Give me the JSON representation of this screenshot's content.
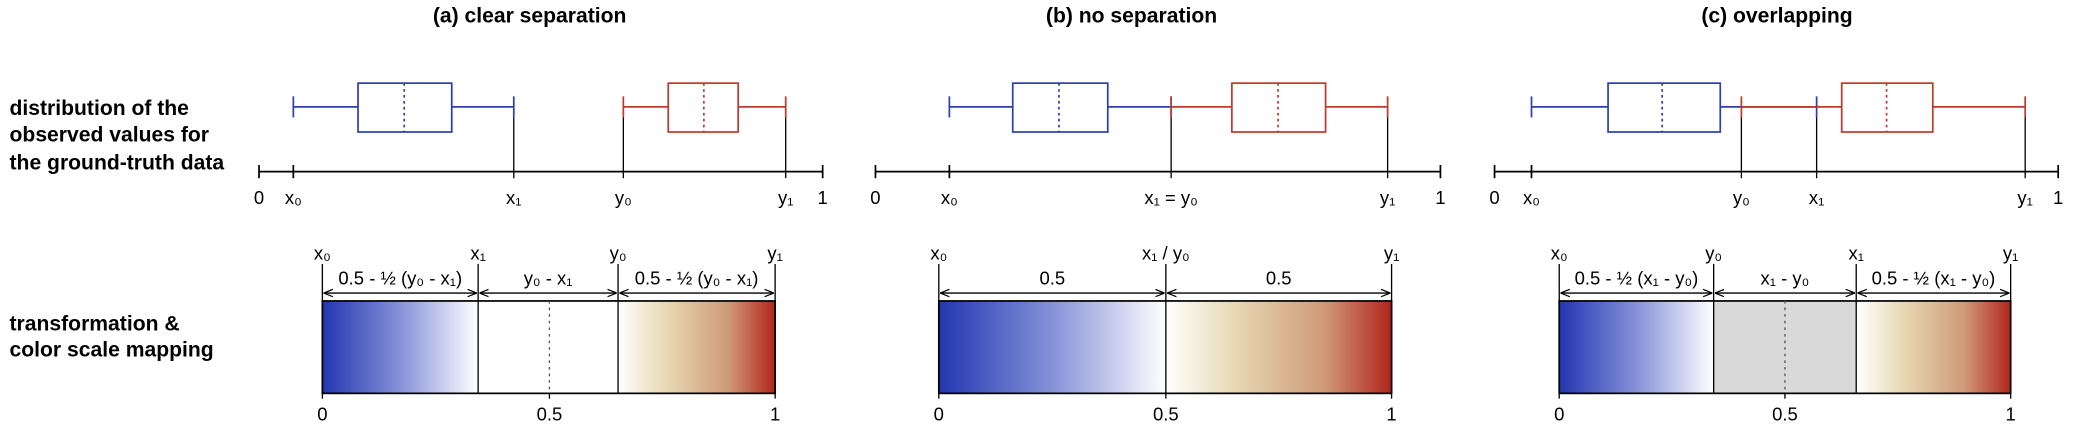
{
  "row_labels": [
    [
      "distribution of the",
      "observed values for",
      "the ground-truth data"
    ],
    [
      "transformation &",
      "color scale mapping"
    ]
  ],
  "panels": [
    {
      "title": "(a) clear separation",
      "axis_labels": [
        "0",
        "x₀",
        "x₁",
        "y₀",
        "y₁",
        "1"
      ],
      "bar_labels": [
        "x₀",
        "x₁",
        "y₀",
        "y₁"
      ],
      "segment_labels": [
        "0.5 - ½ (y₀ - x₁)",
        "y₀ - x₁",
        "0.5 - ½ (y₀ - x₁)"
      ],
      "scale_labels": [
        "0",
        "0.5",
        "1"
      ]
    },
    {
      "title": "(b) no separation",
      "axis_labels": [
        "0",
        "x₀",
        "x₁ = y₀",
        "y₁",
        "1"
      ],
      "bar_labels": [
        "x₀",
        "x₁ / y₀",
        "y₁"
      ],
      "segment_labels": [
        "0.5",
        "0.5"
      ],
      "scale_labels": [
        "0",
        "0.5",
        "1"
      ]
    },
    {
      "title": "(c) overlapping",
      "axis_labels": [
        "0",
        "x₀",
        "y₀",
        "x₁",
        "y₁",
        "1"
      ],
      "bar_labels": [
        "x₀",
        "y₀",
        "x₁",
        "y₁"
      ],
      "segment_labels": [
        "0.5 - ½ (x₁ - y₀)",
        "x₁ - y₀",
        "0.5 - ½ (x₁ - y₀)"
      ],
      "scale_labels": [
        "0",
        "0.5",
        "1"
      ]
    }
  ]
}
